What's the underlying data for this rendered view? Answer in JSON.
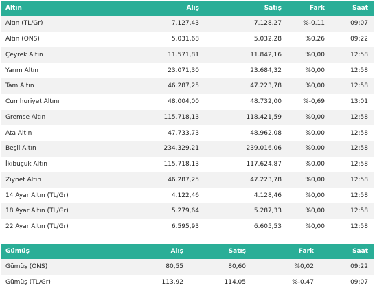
{
  "gold": {
    "headers": [
      "Altın",
      "Alış",
      "Satış",
      "Fark",
      "Saat"
    ],
    "rows": [
      [
        "Altın (TL/Gr)",
        "7.127,43",
        "7.128,27",
        "%-0,11",
        "09:07"
      ],
      [
        "Altın (ONS)",
        "5.031,68",
        "5.032,28",
        "%0,26",
        "09:22"
      ],
      [
        "Çeyrek Altın",
        "11.571,81",
        "11.842,16",
        "%0,00",
        "12:58"
      ],
      [
        "Yarım Altın",
        "23.071,30",
        "23.684,32",
        "%0,00",
        "12:58"
      ],
      [
        "Tam Altın",
        "46.287,25",
        "47.223,78",
        "%0,00",
        "12:58"
      ],
      [
        "Cumhuriyet Altını",
        "48.004,00",
        "48.732,00",
        "%-0,69",
        "13:01"
      ],
      [
        "Gremse Altın",
        "115.718,13",
        "118.421,59",
        "%0,00",
        "12:58"
      ],
      [
        "Ata Altın",
        "47.733,73",
        "48.962,08",
        "%0,00",
        "12:58"
      ],
      [
        "Beşli Altın",
        "234.329,21",
        "239.016,06",
        "%0,00",
        "12:58"
      ],
      [
        "İkibuçuk Altın",
        "115.718,13",
        "117.624,87",
        "%0,00",
        "12:58"
      ],
      [
        "Ziynet Altın",
        "46.287,25",
        "47.223,78",
        "%0,00",
        "12:58"
      ],
      [
        "14 Ayar Altın (TL/Gr)",
        "4.122,46",
        "4.128,46",
        "%0,00",
        "12:58"
      ],
      [
        "18 Ayar Altın (TL/Gr)",
        "5.279,64",
        "5.287,33",
        "%0,00",
        "12:58"
      ],
      [
        "22 Ayar Altın (TL/Gr)",
        "6.595,93",
        "6.605,53",
        "%0,00",
        "12:58"
      ]
    ]
  },
  "silver": {
    "headers": [
      "Gümüş",
      "Alış",
      "Satış",
      "Fark",
      "Saat"
    ],
    "rows": [
      [
        "Gümüş (ONS)",
        "80,55",
        "80,60",
        "%0,02",
        "09:22"
      ],
      [
        "Gümüş (TL/Gr)",
        "113,92",
        "114,05",
        "%-0,47",
        "09:07"
      ]
    ]
  },
  "colors": {
    "header_bg": "#2aae97",
    "row_alt_bg": "#f2f2f2"
  }
}
